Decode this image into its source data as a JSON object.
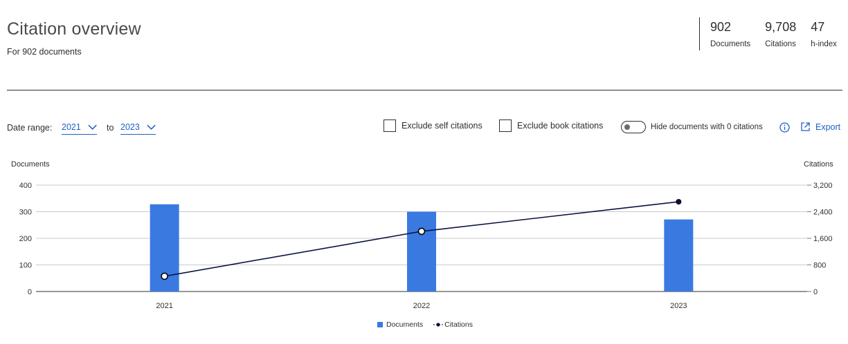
{
  "header": {
    "title": "Citation overview",
    "subtitle": "For 902 documents"
  },
  "metrics": [
    {
      "value": "902",
      "label": "Documents"
    },
    {
      "value": "9,708",
      "label": "Citations"
    },
    {
      "value": "47",
      "label": "h-index"
    }
  ],
  "controls": {
    "date_range_label": "Date range:",
    "from_year": "2021",
    "to_label": "to",
    "to_year": "2023",
    "exclude_self_label": "Exclude self citations",
    "exclude_book_label": "Exclude book citations",
    "hide_zero_label": "Hide documents with 0 citations",
    "export_label": "Export",
    "exclude_self_checked": false,
    "exclude_book_checked": false,
    "hide_zero_on": false
  },
  "colors": {
    "accent": "#1f5fc4",
    "bar": "#3a7ae0",
    "line": "#0b1140"
  },
  "chart_data": {
    "type": "bar",
    "categories": [
      "2021",
      "2022",
      "2023"
    ],
    "series": [
      {
        "name": "Documents",
        "type": "bar",
        "axis": "left",
        "values": [
          328,
          300,
          271
        ]
      },
      {
        "name": "Citations",
        "type": "line",
        "axis": "right",
        "values": [
          460,
          1810,
          2700
        ]
      }
    ],
    "ylabel": "Documents",
    "y2label": "Citations",
    "ylim": [
      0,
      400
    ],
    "y2lim": [
      0,
      3200
    ],
    "yticks": [
      "0",
      "100",
      "200",
      "300",
      "400"
    ],
    "y2ticks": [
      "0",
      "800",
      "1,600",
      "2,400",
      "3,200"
    ],
    "grid": true,
    "legend": "bottom-center"
  }
}
